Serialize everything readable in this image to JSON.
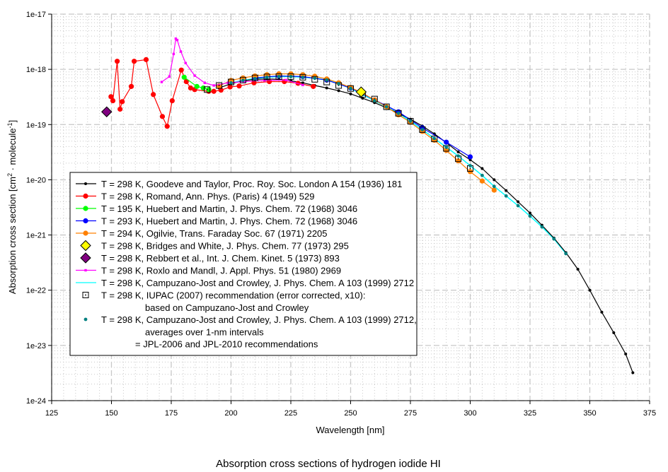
{
  "chart_data": {
    "type": "scatter",
    "title": "Absorption cross sections of hydrogen iodide HI",
    "xlabel": "Wavelength [nm]",
    "ylabel": {
      "main": "Absorption cross section [cm",
      "sup1": "2",
      "mid": " · molecule",
      "sup2": "-1",
      "end": "]"
    },
    "xlim": [
      125,
      375
    ],
    "ylim": [
      1e-24,
      1e-17
    ],
    "yscale": "log",
    "grid": true,
    "legend_placement": "lower-left",
    "xticks": [
      "125",
      "150",
      "175",
      "200",
      "225",
      "250",
      "275",
      "300",
      "325",
      "350",
      "375"
    ],
    "yticks": [
      "1e-17",
      "1e-18",
      "1e-19",
      "1e-20",
      "1e-21",
      "1e-22",
      "1e-23",
      "1e-24"
    ],
    "series": [
      {
        "name": "T = 298 K, Goodeve and Taylor, Proc. Roy. Soc. London A 154 (1936) 181",
        "color": "#000000",
        "marker": "dot-small",
        "line": true,
        "x": [
          195,
          200,
          205,
          210,
          215,
          220,
          225,
          230,
          235,
          240,
          245,
          250,
          255,
          260,
          265,
          270,
          275,
          280,
          285,
          290,
          295,
          300,
          305,
          310,
          315,
          320,
          325,
          330,
          335,
          340,
          345,
          350,
          355,
          360,
          365,
          368
        ],
        "y": [
          4.6e-19,
          5.5e-19,
          6.2e-19,
          6.6e-19,
          6.7e-19,
          6.6e-19,
          6.2e-19,
          5.7e-19,
          5.1e-19,
          4.6e-19,
          4.1e-19,
          3.6e-19,
          3e-19,
          2.5e-19,
          2e-19,
          1.6e-19,
          1.25e-19,
          9.4e-20,
          6.8e-20,
          4.7e-20,
          3.2e-20,
          2.3e-20,
          1.6e-20,
          1e-20,
          6.4e-21,
          4e-21,
          2.5e-21,
          1.5e-21,
          8.8e-22,
          4.8e-22,
          2.4e-22,
          1e-22,
          4e-23,
          1.7e-23,
          7e-24,
          3.2e-24
        ]
      },
      {
        "name": "T = 298 K, Romand, Ann. Phys. (Paris) 4 (1949) 529",
        "color": "#ff0000",
        "marker": "dot-large",
        "line": true,
        "x": [
          149.8,
          150.6,
          152.4,
          153.6,
          154.5,
          158.3,
          159.5,
          164.5,
          167.5,
          171.3,
          173.3,
          175.4,
          179.2,
          181.3,
          183.1,
          184.8,
          190.7,
          192.8,
          195.8,
          199.6,
          203.4,
          209.6,
          216,
          222.3,
          228,
          234.4
        ],
        "y": [
          3.2e-19,
          2.7e-19,
          1.4e-18,
          1.9e-19,
          2.6e-19,
          4.9e-19,
          1.4e-18,
          1.5e-18,
          3.5e-19,
          1.4e-19,
          9.3e-20,
          2.7e-19,
          9.7e-19,
          6e-19,
          4.6e-19,
          4.3e-19,
          4e-19,
          4e-19,
          4.2e-19,
          4.8e-19,
          5e-19,
          5.7e-19,
          6e-19,
          6e-19,
          5.6e-19,
          4.9e-19
        ]
      },
      {
        "name": "T = 195 K, Huebert and Martin, J. Phys. Chem. 72 (1968) 3046",
        "color": "#00ff00",
        "marker": "dot-large",
        "line": true,
        "x": [
          180.4,
          185.7,
          188.4,
          190.7
        ],
        "y": [
          7.2e-19,
          4.9e-19,
          4.6e-19,
          4.3e-19
        ]
      },
      {
        "name": "T = 293 K, Huebert and Martin, J. Phys. Chem. 72 (1968) 3046",
        "color": "#0000ff",
        "marker": "dot-large",
        "line": true,
        "x": [
          210,
          220,
          230,
          240,
          250,
          260,
          270,
          280,
          290,
          300
        ],
        "y": [
          7e-19,
          7.6e-19,
          7.4e-19,
          6.4e-19,
          4.6e-19,
          2.8e-19,
          1.7e-19,
          8.7e-20,
          4.8e-20,
          2.6e-20
        ]
      },
      {
        "name": "T = 294 K, Ogilvie, Trans. Faraday Soc. 67 (1971) 2205",
        "color": "#ff8000",
        "marker": "dot-large",
        "line": true,
        "x": [
          195,
          200,
          205,
          210,
          215,
          220,
          225,
          230,
          235,
          240,
          245,
          250,
          255,
          260,
          265,
          270,
          275,
          280,
          285,
          290,
          295,
          300,
          305,
          310
        ],
        "y": [
          5e-19,
          6.3e-19,
          7e-19,
          7.6e-19,
          8e-19,
          8.3e-19,
          8.3e-19,
          8e-19,
          7.5e-19,
          6.7e-19,
          5.7e-19,
          4.7e-19,
          3.7e-19,
          2.8e-19,
          2.1e-19,
          1.5e-19,
          1.1e-19,
          7.5e-20,
          5.2e-20,
          3.4e-20,
          2.2e-20,
          1.4e-20,
          9.5e-21,
          6.5e-21
        ]
      },
      {
        "name": "T = 298 K, Bridges and White, J. Phys. Chem. 77 (1973) 295",
        "color": "#ffff00",
        "marker": "diamond",
        "line": false,
        "x": [
          254.4
        ],
        "y": [
          3.9e-19
        ]
      },
      {
        "name": "T = 298 K, Rebbert et al., Int. J. Chem. Kinet. 5 (1973) 893",
        "color": "#800080",
        "marker": "diamond",
        "line": false,
        "x": [
          148.0
        ],
        "y": [
          1.7e-19
        ]
      },
      {
        "name": "T = 298 K, Roxlo and Mandl, J. Appl. Phys. 51 (1980) 2969",
        "color": "#ff00ff",
        "marker": "square-small",
        "line": true,
        "x": [
          171.0,
          174.2,
          176.0,
          176.9,
          177.5,
          179.0,
          181.0,
          184.8,
          189.0,
          192.8,
          198.7,
          205.5,
          214,
          223,
          230
        ],
        "y": [
          5.9e-19,
          7.4e-19,
          1.9e-18,
          3.6e-18,
          3.4e-18,
          2.1e-18,
          1.3e-18,
          7.7e-19,
          5.7e-19,
          5.1e-19,
          5.7e-19,
          6e-19,
          6.3e-19,
          6.4e-19,
          5.2e-19
        ]
      },
      {
        "name": "T = 298 K, Campuzano-Jost and Crowley, J. Phys. Chem. A 103 (1999) 2712",
        "color": "#00ffff",
        "marker": "none",
        "line": true,
        "x": [
          200,
          205,
          210,
          215,
          220,
          225,
          230,
          235,
          240,
          245,
          250,
          255,
          260,
          265,
          270,
          275,
          280,
          285,
          290,
          295,
          300,
          305,
          310,
          315,
          320,
          325,
          330,
          335,
          340
        ],
        "y": [
          5.7e-19,
          6.3e-19,
          6.8e-19,
          7.2e-19,
          7.4e-19,
          7.4e-19,
          7.2e-19,
          6.9e-19,
          6.4e-19,
          5.5e-19,
          4.5e-19,
          3.5e-19,
          2.7e-19,
          2.1e-19,
          1.6e-19,
          1.15e-19,
          8.1e-20,
          5.6e-20,
          3.9e-20,
          2.7e-20,
          1.8e-20,
          1.2e-20,
          7.6e-21,
          5.1e-21,
          3.4e-21,
          2.2e-21,
          1.4e-21,
          8.5e-22,
          4.6e-22
        ]
      },
      {
        "name": "T = 298 K, IUPAC (2007) recommendation (error corrected, x10):",
        "name2": "based on Campuzano-Jost and Crowley",
        "color": "#000000",
        "marker": "open-square",
        "line": false,
        "x": [
          190,
          195,
          200,
          205,
          210,
          215,
          220,
          225,
          230,
          235,
          240,
          245,
          250,
          255,
          260,
          265,
          270,
          275,
          280,
          285,
          290,
          295,
          300
        ],
        "y": [
          4.3e-19,
          5.1e-19,
          5.9e-19,
          6.4e-19,
          7e-19,
          7.3e-19,
          7.4e-19,
          7.4e-19,
          7.2e-19,
          6.6e-19,
          5.9e-19,
          5.1e-19,
          4.5e-19,
          3.5e-19,
          2.9e-19,
          2.1e-19,
          1.6e-19,
          1.15e-19,
          8.1e-20,
          5.5e-20,
          3.7e-20,
          2.4e-20,
          1.6e-20
        ]
      },
      {
        "name": "T = 298 K, Campuzano-Jost and Crowley, J. Phys. Chem. A 103 (1999) 2712,",
        "name2": "averages over 1-nm intervals",
        "name3": "= JPL-2006 and JPL-2010 recommendations",
        "color": "#008080",
        "marker": "dot-teal",
        "line": false,
        "x": [
          200,
          205,
          210,
          215,
          220,
          225,
          230,
          235,
          240,
          245,
          250,
          255,
          260,
          265,
          270,
          275,
          280,
          285,
          290,
          295,
          300,
          305,
          310,
          315,
          320,
          325,
          330,
          335,
          340
        ],
        "y": [
          5.7e-19,
          6.3e-19,
          6.8e-19,
          7.2e-19,
          7.4e-19,
          7.4e-19,
          7.2e-19,
          6.9e-19,
          6.4e-19,
          5.5e-19,
          4.5e-19,
          3.5e-19,
          2.7e-19,
          2.1e-19,
          1.6e-19,
          1.15e-19,
          8.1e-20,
          5.6e-20,
          3.9e-20,
          2.7e-20,
          1.8e-20,
          1.2e-20,
          7.6e-21,
          5.1e-21,
          3.4e-21,
          2.2e-21,
          1.4e-21,
          8.5e-22,
          4.6e-22
        ]
      }
    ]
  }
}
